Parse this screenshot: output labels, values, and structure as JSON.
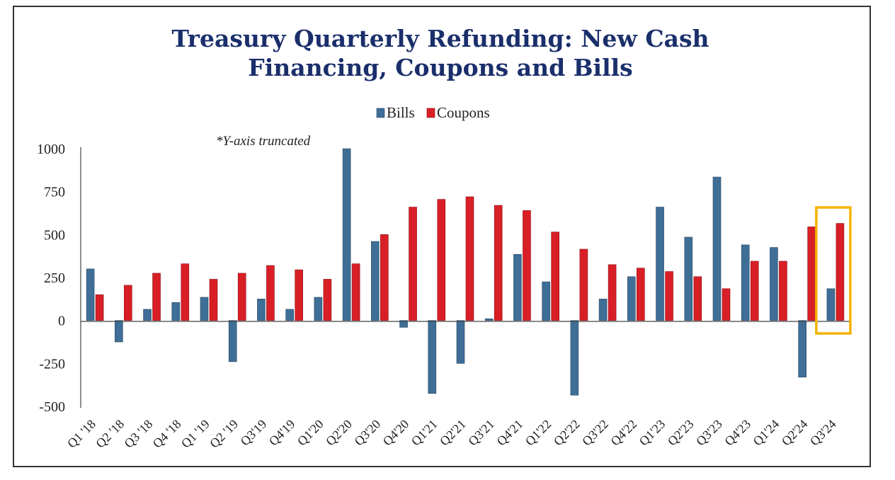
{
  "chart_data": {
    "type": "bar",
    "title_line1": "Treasury Quarterly Refunding: New Cash",
    "title_line2": "Financing, Coupons and Bills",
    "note": "*Y-axis truncated",
    "xlabel": "",
    "ylabel": "",
    "ylim": [
      -500,
      1000
    ],
    "yticks": [
      1000,
      750,
      500,
      250,
      0,
      -250,
      -500
    ],
    "legend_position": "top-center",
    "highlight_category": "Q3'24",
    "colors": {
      "Bills": "#3f6e96",
      "Coupons": "#d91f26",
      "highlight": "#f4b400",
      "title": "#1a2f6b"
    },
    "categories": [
      "Q1 '18",
      "Q2 '18",
      "Q3 '18",
      "Q4 '18",
      "Q1 '19",
      "Q2 '19",
      "Q3'19",
      "Q4'19",
      "Q1'20",
      "Q2'20",
      "Q3'20",
      "Q4'20",
      "Q1'21",
      "Q2'21",
      "Q3'21",
      "Q4'21",
      "Q1'22",
      "Q2'22",
      "Q3'22",
      "Q4'22",
      "Q1'23",
      "Q2'23",
      "Q3'23",
      "Q4'23",
      "Q1'24",
      "Q2'24",
      "Q3'24"
    ],
    "series": [
      {
        "name": "Bills",
        "values": [
          300,
          -125,
          65,
          105,
          135,
          -240,
          125,
          65,
          135,
          1000,
          460,
          -40,
          -425,
          -250,
          10,
          385,
          225,
          -435,
          125,
          255,
          660,
          485,
          835,
          440,
          425,
          -330,
          185
        ]
      },
      {
        "name": "Coupons",
        "values": [
          150,
          205,
          275,
          330,
          240,
          275,
          320,
          295,
          240,
          330,
          500,
          660,
          705,
          720,
          670,
          640,
          515,
          415,
          325,
          305,
          285,
          255,
          185,
          345,
          345,
          545,
          565
        ]
      }
    ]
  }
}
